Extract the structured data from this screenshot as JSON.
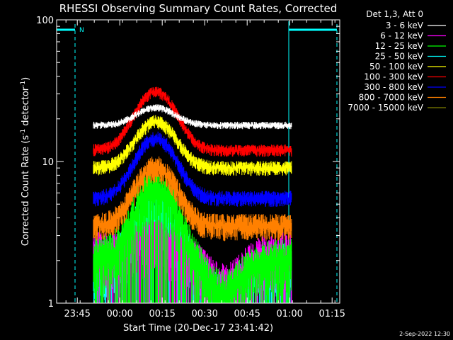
{
  "chart_data": {
    "type": "line",
    "title": "RHESSI Observing Summary Count Rates, Corrected",
    "xlabel": "Start Time (20-Dec-17 23:41:42)",
    "ylabel_main": "Corrected Count Rate (s",
    "ylabel_sup1": "-1",
    "ylabel_mid": " detector",
    "ylabel_sup2": "-1",
    "ylabel_end": ")",
    "yscale": "log",
    "ylim": [
      1,
      100
    ],
    "xlim_minutes_after_start": [
      -4,
      96
    ],
    "x_ticks": [
      {
        "label": "23:45",
        "min": 3.3
      },
      {
        "label": "00:00",
        "min": 18.3
      },
      {
        "label": "00:15",
        "min": 33.3
      },
      {
        "label": "00:30",
        "min": 48.3
      },
      {
        "label": "00:45",
        "min": 63.3
      },
      {
        "label": "01:00",
        "min": 78.3
      },
      {
        "label": "01:15",
        "min": 93.3
      }
    ],
    "y_ticks": [
      {
        "label": "1",
        "value": 1
      },
      {
        "label": "10",
        "value": 10
      },
      {
        "label": "100",
        "value": 100
      }
    ],
    "data_interval_minutes": [
      9,
      79
    ],
    "night_marker_label": "N",
    "legend_header": "Det 1,3, Att 0",
    "legend_position": "right",
    "series": [
      {
        "name": "3 - 6 keV",
        "color": "#ffffff",
        "base": 18,
        "peak": 6,
        "noise": 0.06
      },
      {
        "name": "6 - 12 keV",
        "color": "#ff00ff",
        "base": 2.2,
        "peak": 0.5,
        "noise": 0.45
      },
      {
        "name": "12 - 25 keV",
        "color": "#00ff00",
        "base": 2.0,
        "peak": 4.5,
        "noise": 0.45
      },
      {
        "name": "25 - 50 keV",
        "color": "#00ffff",
        "base": 1.8,
        "peak": 2.8,
        "noise": 0.5
      },
      {
        "name": "50 - 100 keV",
        "color": "#ffff00",
        "base": 9,
        "peak": 10,
        "noise": 0.12
      },
      {
        "name": "100 - 300 keV",
        "color": "#ff0000",
        "base": 12,
        "peak": 19,
        "noise": 0.1
      },
      {
        "name": "300 - 800 keV",
        "color": "#0000ff",
        "base": 5.5,
        "peak": 9,
        "noise": 0.13
      },
      {
        "name": "800 - 7000 keV",
        "color": "#ff8000",
        "base": 3.5,
        "peak": 5.5,
        "noise": 0.22
      },
      {
        "name": "7000 - 15000 keV",
        "color": "#808000",
        "base": 0,
        "peak": 0,
        "noise": 0
      }
    ],
    "footer_date": "2-Sep-2022 12:30"
  }
}
